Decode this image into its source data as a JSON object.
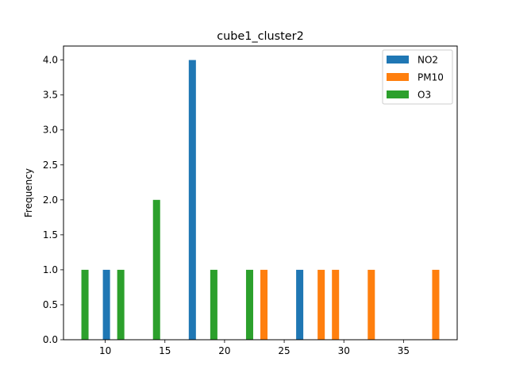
{
  "chart_data": {
    "type": "bar",
    "title": "cube1_cluster2",
    "xlabel": "",
    "ylabel": "Frequency",
    "xlim": [
      6.5,
      39.5
    ],
    "ylim": [
      0,
      4.2
    ],
    "xticks": [
      10,
      15,
      20,
      25,
      30,
      35
    ],
    "yticks": [
      0.0,
      0.5,
      1.0,
      1.5,
      2.0,
      2.5,
      3.0,
      3.5,
      4.0
    ],
    "bar_width": 0.6,
    "grid": false,
    "legend": "top-right",
    "series": [
      {
        "name": "NO2",
        "color": "#1f77b4",
        "x": [
          10.1,
          17.3,
          26.3
        ],
        "values": [
          1,
          4,
          1
        ]
      },
      {
        "name": "PM10",
        "color": "#ff7f0e",
        "x": [
          23.3,
          28.1,
          29.3,
          32.3,
          37.7
        ],
        "values": [
          1,
          1,
          1,
          1,
          1
        ]
      },
      {
        "name": "O3",
        "color": "#2ca02c",
        "x": [
          8.3,
          11.3,
          14.3,
          19.1,
          22.1
        ],
        "values": [
          1,
          1,
          2,
          1,
          1
        ]
      }
    ]
  }
}
